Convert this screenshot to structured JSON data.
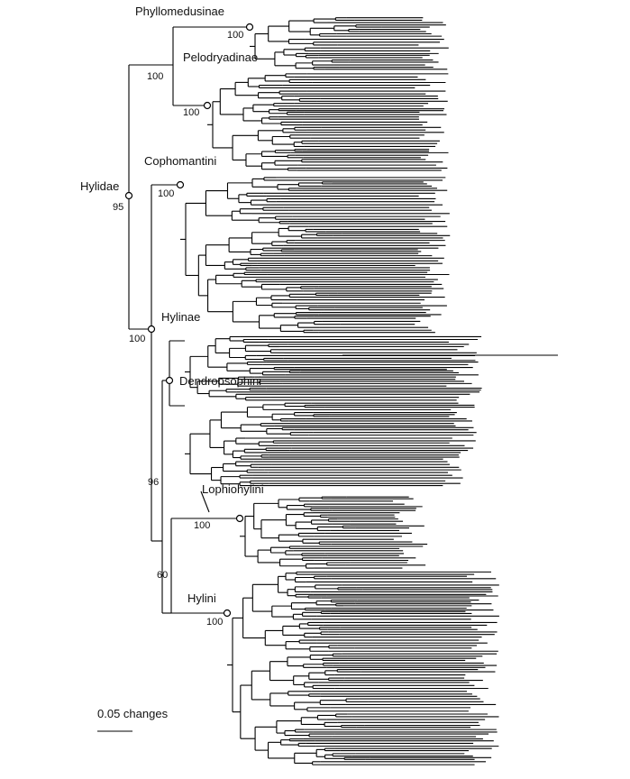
{
  "figure": {
    "clades": [
      {
        "id": "phyllomedusinae",
        "name": "Phyllomedusinae",
        "support": "100"
      },
      {
        "id": "pelodryadinae",
        "name": "Pelodryadinae",
        "support": "100"
      },
      {
        "id": "hylidae",
        "name": "Hylidae",
        "support": "95"
      },
      {
        "id": "cophomantini",
        "name": "Cophomantini",
        "support": "100"
      },
      {
        "id": "hylinae",
        "name": "Hylinae",
        "support": "100"
      },
      {
        "id": "dendropsophini",
        "name": "Dendropsophini",
        "support": ""
      },
      {
        "id": "lophiohylini",
        "name": "Lophiohylini",
        "support": "100"
      },
      {
        "id": "hylini",
        "name": "Hylini",
        "support": "100"
      }
    ],
    "internal_support": [
      {
        "id": "root-phyllo-pelo",
        "value": "100"
      },
      {
        "id": "dendro-lophio-hylini",
        "value": "96"
      },
      {
        "id": "lophio-hylini",
        "value": "60"
      }
    ],
    "scale_bar": {
      "label": "0.05 changes"
    }
  },
  "colors": {
    "line": "#000000",
    "background": "#ffffff"
  }
}
